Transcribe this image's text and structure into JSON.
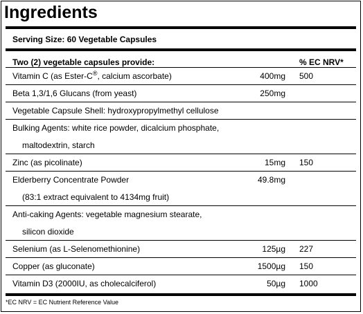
{
  "title": "Ingredients",
  "serving_size": "Serving Size: 60 Vegetable Capsules",
  "table_header": {
    "provides": "Two (2) vegetable capsules provide:",
    "nrv": "% EC NRV*"
  },
  "rows": [
    {
      "name": "Vitamin C (as Ester-C",
      "reg": "®",
      "name_suffix": ", calcium ascorbate)",
      "amount": "400mg",
      "nrv": "500"
    },
    {
      "name": "Beta 1,3/1,6 Glucans (from yeast)",
      "amount": "250mg",
      "nrv": ""
    },
    {
      "name": "Vegetable Capsule Shell: hydroxypropylmethyl cellulose",
      "amount": "",
      "nrv": ""
    },
    {
      "name": "Bulking Agents: white rice powder, dicalcium phosphate,",
      "amount": "",
      "nrv": ""
    },
    {
      "name": "maltodextrin, starch",
      "amount": "",
      "nrv": ""
    },
    {
      "name": "Zinc (as picolinate)",
      "amount": "15mg",
      "nrv": "150"
    },
    {
      "name": "Elderberry Concentrate Powder",
      "amount": "49.8mg",
      "nrv": ""
    },
    {
      "name": "(83:1 extract equivalent to 4134mg fruit)",
      "amount": "",
      "nrv": ""
    },
    {
      "name": "Anti-caking Agents: vegetable magnesium stearate,",
      "amount": "",
      "nrv": ""
    },
    {
      "name": "silicon dioxide",
      "amount": "",
      "nrv": ""
    },
    {
      "name": "Selenium (as L-Selenomethionine)",
      "amount": "125µg",
      "nrv": "227"
    },
    {
      "name": "Copper (as gluconate)",
      "amount": "1500µg",
      "nrv": "150"
    },
    {
      "name": "Vitamin D3 (2000IU, as cholecalciferol)",
      "amount": "50µg",
      "nrv": "1000"
    }
  ],
  "footnote": "*EC NRV = EC Nutrient Reference Value"
}
